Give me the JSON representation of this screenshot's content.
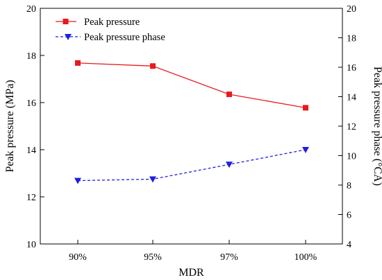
{
  "chart_data": {
    "type": "line",
    "xlabel": "MDR",
    "ylabel": "Peak pressure (MPa)",
    "y2label": "Peak pressure phase (°CA)",
    "categories": [
      "90%",
      "95%",
      "97%",
      "100%"
    ],
    "ylim": [
      10,
      20
    ],
    "y2lim": [
      4,
      20
    ],
    "yticks": [
      "10",
      "12",
      "14",
      "16",
      "18",
      "20"
    ],
    "y2ticks": [
      "4",
      "6",
      "8",
      "10",
      "12",
      "14",
      "16",
      "18",
      "20"
    ],
    "legend_position": "top-left",
    "grid": false,
    "series": [
      {
        "name": "Peak pressure",
        "axis": "left",
        "color": "#e8191f",
        "marker": "square",
        "line": "solid",
        "values": [
          17.68,
          17.55,
          16.35,
          15.78
        ]
      },
      {
        "name": "Peak pressure phase",
        "axis": "right",
        "color": "#1f1fe0",
        "marker": "triangle-down",
        "line": "dashed",
        "values": [
          8.3,
          8.4,
          9.4,
          10.4
        ]
      }
    ]
  }
}
